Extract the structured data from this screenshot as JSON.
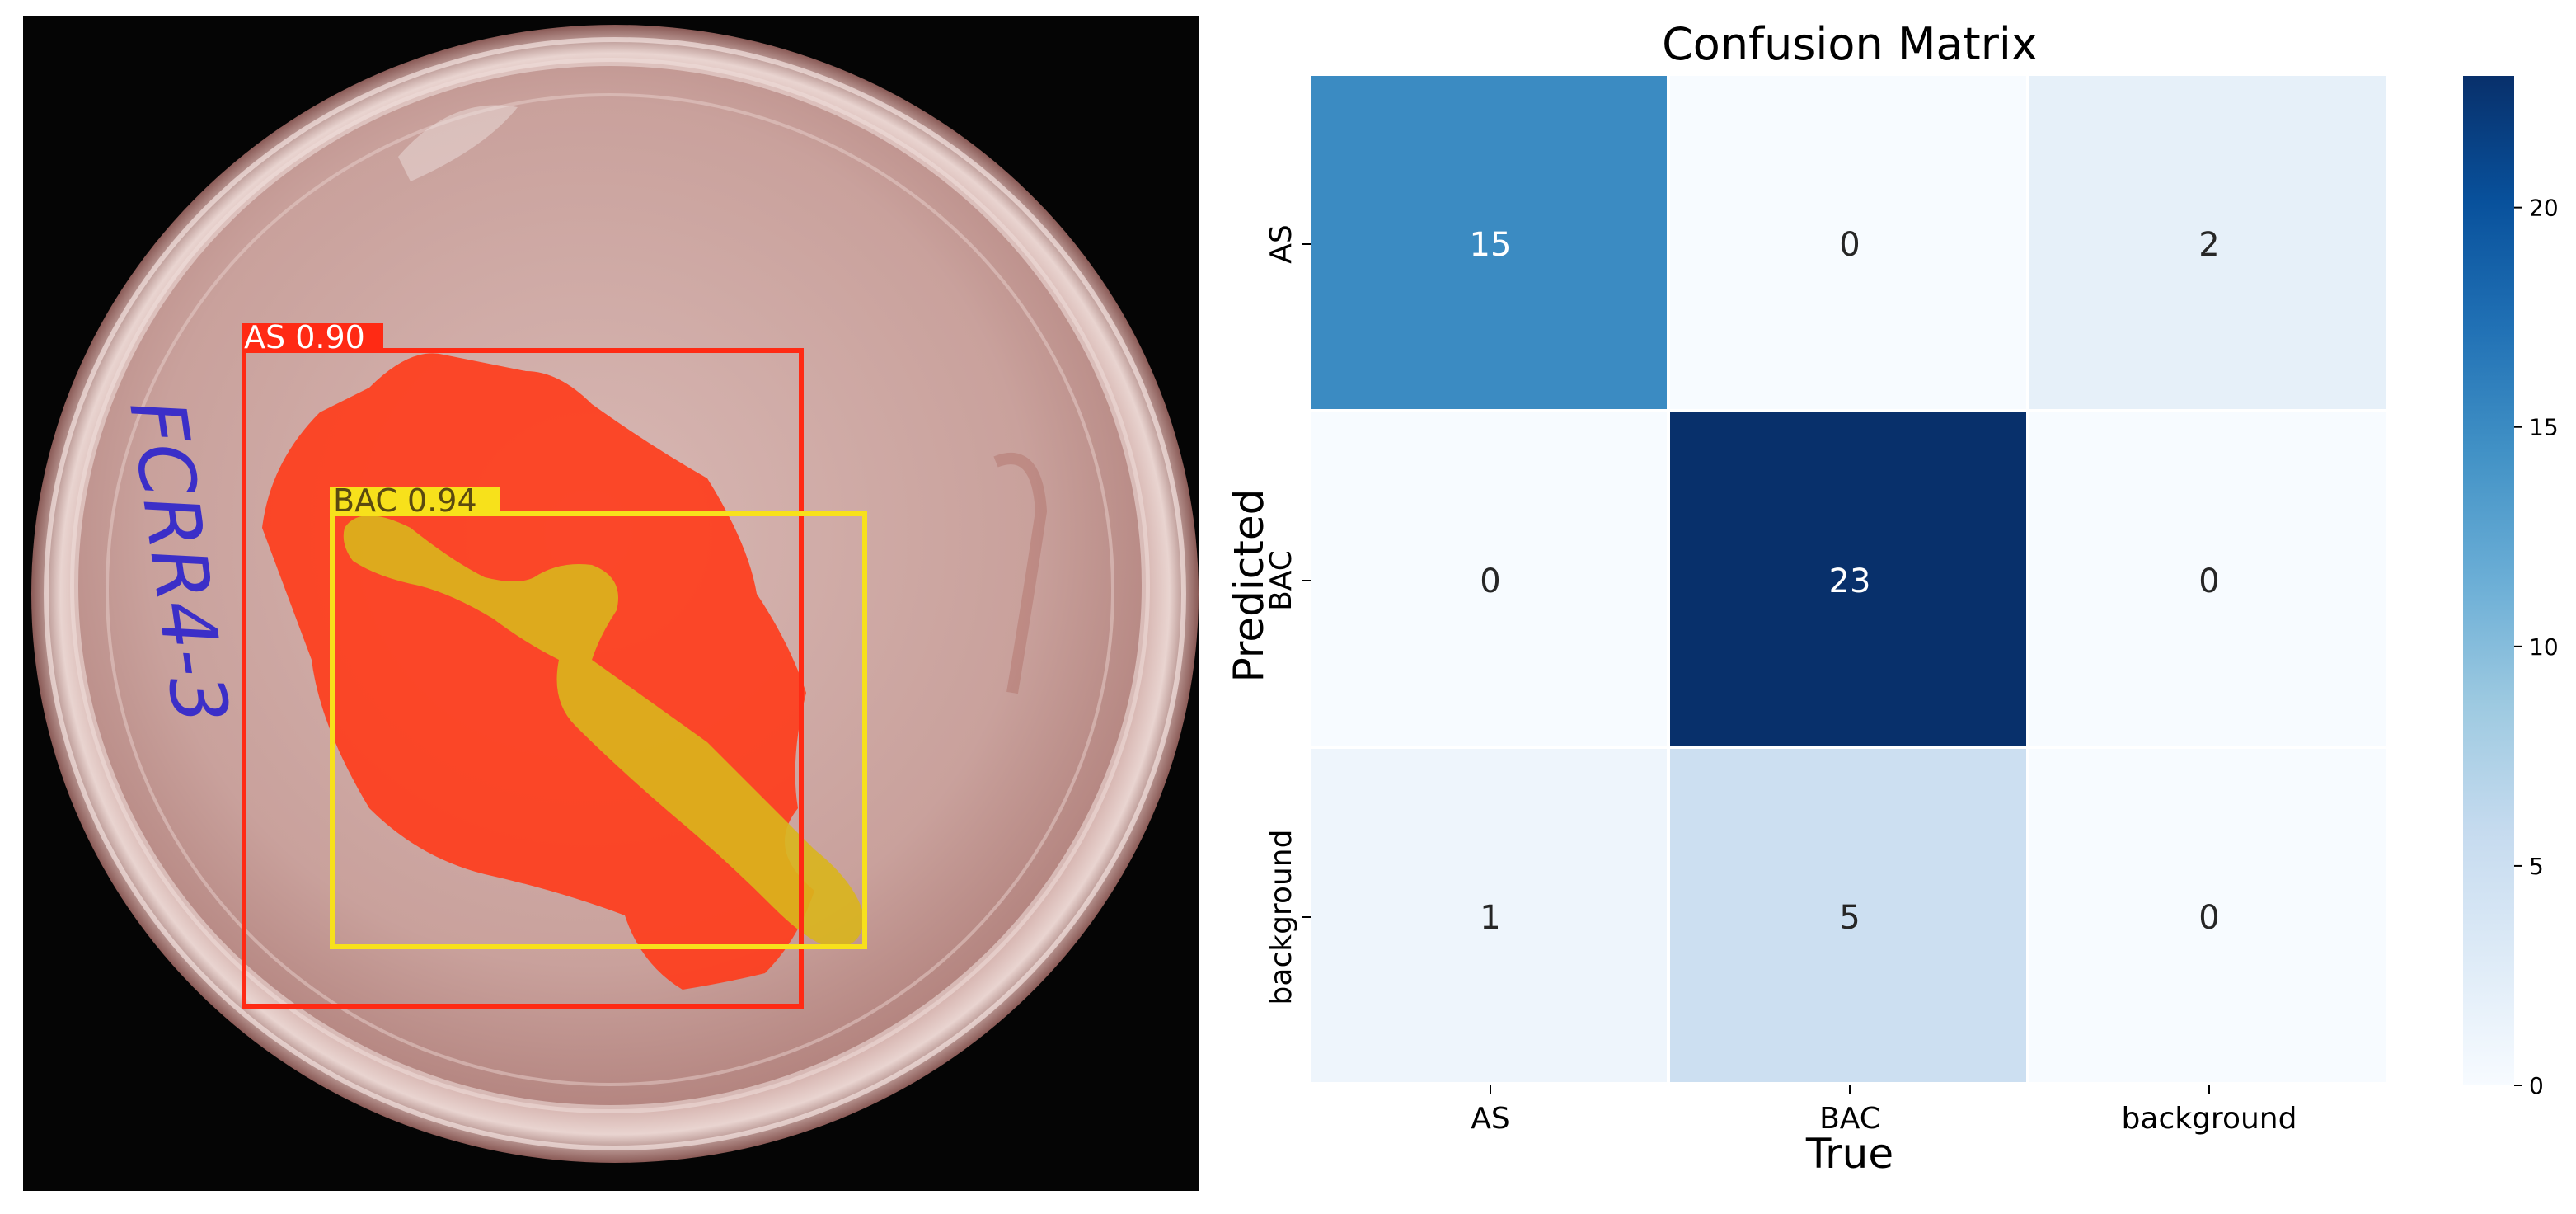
{
  "detections": [
    {
      "label": "AS 0.90",
      "class": "AS",
      "confidence": 0.9,
      "color": "#ff2a14"
    },
    {
      "label": "BAC 0.94",
      "class": "BAC",
      "confidence": 0.94,
      "color": "#f7e11b"
    }
  ],
  "handwriting": "FCRR4-3",
  "chart_data": {
    "type": "heatmap",
    "title": "Confusion Matrix",
    "xlabel": "True",
    "ylabel": "Predicted",
    "x_categories": [
      "AS",
      "BAC",
      "background"
    ],
    "y_categories": [
      "AS",
      "BAC",
      "background"
    ],
    "values": [
      [
        15,
        0,
        2
      ],
      [
        0,
        23,
        0
      ],
      [
        1,
        5,
        0
      ]
    ],
    "colorbar": {
      "min": 0,
      "max": 23,
      "ticks": [
        0,
        5,
        10,
        15,
        20
      ],
      "colormap": "Blues"
    }
  }
}
